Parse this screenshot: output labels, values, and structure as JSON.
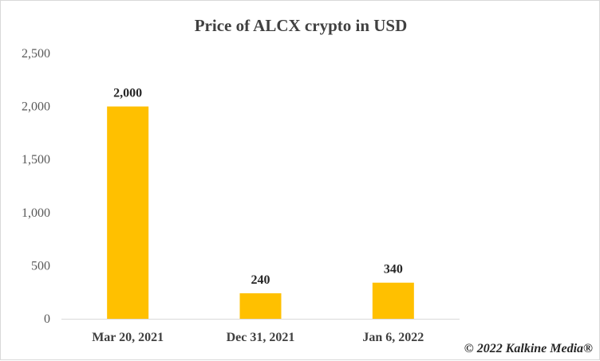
{
  "chart_data": {
    "type": "bar",
    "title": "Price of ALCX crypto in USD",
    "categories": [
      "Mar 20, 2021",
      "Dec 31, 2021",
      "Jan 6, 2022"
    ],
    "values": [
      2000,
      240,
      340
    ],
    "data_labels": [
      "2,000",
      "240",
      "340"
    ],
    "y_ticks": [
      "0",
      "500",
      "1,000",
      "1,500",
      "2,000",
      "2,500"
    ],
    "ylim": [
      0,
      2500
    ],
    "xlabel": "",
    "ylabel": "",
    "grid": false,
    "bar_color": "#FFC000"
  },
  "footer": {
    "copyright": "© 2022 Kalkine Media®"
  }
}
